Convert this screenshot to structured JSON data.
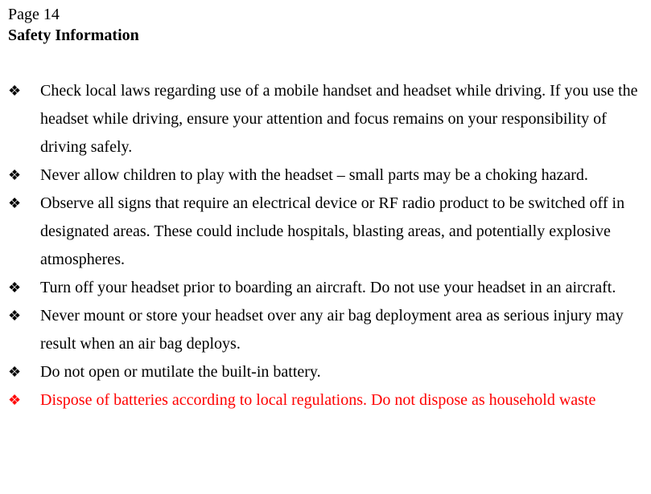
{
  "page_label": "Page 14",
  "heading": "Safety Information",
  "bullet_glyph": "❖",
  "colors": {
    "text": "#000000",
    "highlight": "#ff0000",
    "background": "#ffffff"
  },
  "typography": {
    "body_font": "Times New Roman",
    "body_size_pt": 15,
    "line_height": 1.75
  },
  "items": [
    {
      "text": "Check local laws regarding use of a mobile handset and headset while driving. If you use the headset while driving, ensure your attention and focus remains on your responsibility of driving safely.",
      "color": "normal"
    },
    {
      "text": "Never allow children to play with the headset – small parts may be a choking hazard.",
      "color": "normal"
    },
    {
      "text": "Observe all signs that require an electrical device or RF radio product to be switched off in designated areas. These could include hospitals, blasting areas, and potentially explosive atmospheres.",
      "color": "normal"
    },
    {
      "text": "Turn off your headset prior to boarding an aircraft. Do not use your headset in an aircraft.",
      "color": "normal"
    },
    {
      "text": "Never mount or store your headset over any air bag deployment area as serious injury may result when an air bag deploys.",
      "color": "normal"
    },
    {
      "text": "Do not open or mutilate the built-in battery.",
      "color": "normal"
    },
    {
      "text": "Dispose of batteries according to local regulations. Do not dispose as household waste",
      "color": "highlight"
    }
  ]
}
